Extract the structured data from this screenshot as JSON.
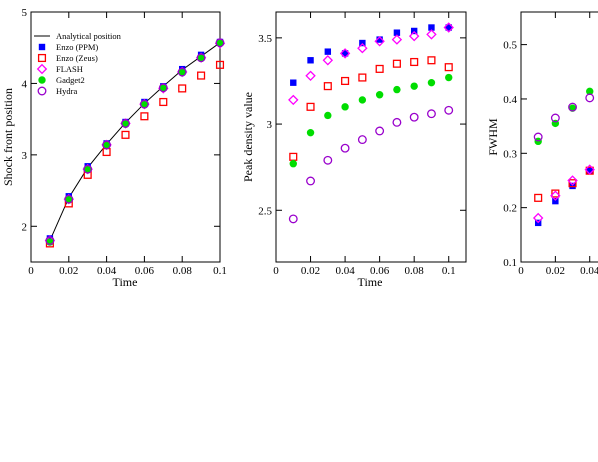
{
  "chart_data": [
    {
      "type": "scatter",
      "xlabel": "Time",
      "ylabel": "Shock front position",
      "xlim": [
        0,
        0.1
      ],
      "ylim": [
        1.5,
        5
      ],
      "xticks": [
        "0",
        "0.02",
        "0.04",
        "0.06",
        "0.08",
        "0.1"
      ],
      "yticks": [
        "2",
        "3",
        "4",
        "5"
      ],
      "legend_position": "top-left",
      "analytical": {
        "name": "Analytical position",
        "x": [
          0.01,
          0.02,
          0.03,
          0.04,
          0.05,
          0.06,
          0.07,
          0.08,
          0.09,
          0.1
        ],
        "y": [
          1.8,
          2.4,
          2.82,
          3.15,
          3.45,
          3.72,
          3.96,
          4.19,
          4.38,
          4.57
        ]
      },
      "series": [
        {
          "name": "Enzo (PPM)",
          "marker": "square-filled",
          "color": "#0000ff",
          "x": [
            0.01,
            0.02,
            0.03,
            0.04,
            0.05,
            0.06,
            0.07,
            0.08,
            0.09,
            0.1
          ],
          "y": [
            1.83,
            2.42,
            2.84,
            3.16,
            3.46,
            3.74,
            3.96,
            4.2,
            4.4,
            4.58
          ]
        },
        {
          "name": "Enzo (Zeus)",
          "marker": "square-open",
          "color": "#ff0000",
          "x": [
            0.01,
            0.02,
            0.03,
            0.04,
            0.05,
            0.06,
            0.07,
            0.08,
            0.09,
            0.1
          ],
          "y": [
            1.76,
            2.32,
            2.72,
            3.04,
            3.28,
            3.54,
            3.74,
            3.93,
            4.11,
            4.26
          ]
        },
        {
          "name": "FLASH",
          "marker": "diamond-open",
          "color": "#ff00ff",
          "x": [
            0.01,
            0.02,
            0.03,
            0.04,
            0.05,
            0.06,
            0.07,
            0.08,
            0.09,
            0.1
          ],
          "y": [
            1.8,
            2.38,
            2.8,
            3.14,
            3.44,
            3.71,
            3.93,
            4.16,
            4.36,
            4.56
          ]
        },
        {
          "name": "Gadget2",
          "marker": "circle-filled",
          "color": "#00dd00",
          "x": [
            0.01,
            0.02,
            0.03,
            0.04,
            0.05,
            0.06,
            0.07,
            0.08,
            0.09,
            0.1
          ],
          "y": [
            1.78,
            2.37,
            2.79,
            3.13,
            3.43,
            3.7,
            3.93,
            4.15,
            4.35,
            4.56
          ]
        },
        {
          "name": "Hydra",
          "marker": "circle-open",
          "color": "#9900cc",
          "x": [
            0.01,
            0.02,
            0.03,
            0.04,
            0.05,
            0.06,
            0.07,
            0.08,
            0.09,
            0.1
          ],
          "y": [
            1.8,
            2.38,
            2.8,
            3.14,
            3.44,
            3.71,
            3.94,
            4.16,
            4.36,
            4.57
          ]
        }
      ]
    },
    {
      "type": "scatter",
      "xlabel": "Time",
      "ylabel": "Peak density value",
      "xlim": [
        0,
        0.11
      ],
      "ylim": [
        2.2,
        3.65
      ],
      "xticks": [
        "0",
        "0.02",
        "0.04",
        "0.06",
        "0.08",
        "0.1"
      ],
      "yticks": [
        "2.5",
        "3",
        "3.5"
      ],
      "series": [
        {
          "name": "Enzo (PPM)",
          "marker": "square-filled",
          "color": "#0000ff",
          "x": [
            0.01,
            0.02,
            0.03,
            0.04,
            0.05,
            0.06,
            0.07,
            0.08,
            0.09,
            0.1
          ],
          "y": [
            3.24,
            3.37,
            3.42,
            3.41,
            3.47,
            3.49,
            3.53,
            3.54,
            3.56,
            3.56
          ]
        },
        {
          "name": "Enzo (Zeus)",
          "marker": "square-open",
          "color": "#ff0000",
          "x": [
            0.01,
            0.02,
            0.03,
            0.04,
            0.05,
            0.06,
            0.07,
            0.08,
            0.09,
            0.1
          ],
          "y": [
            2.81,
            3.1,
            3.22,
            3.25,
            3.27,
            3.32,
            3.35,
            3.36,
            3.37,
            3.33
          ]
        },
        {
          "name": "FLASH",
          "marker": "diamond-open",
          "color": "#ff00ff",
          "x": [
            0.01,
            0.02,
            0.03,
            0.04,
            0.05,
            0.06,
            0.07,
            0.08,
            0.09,
            0.1
          ],
          "y": [
            3.14,
            3.28,
            3.37,
            3.41,
            3.44,
            3.48,
            3.49,
            3.51,
            3.52,
            3.56
          ]
        },
        {
          "name": "Gadget2",
          "marker": "circle-filled",
          "color": "#00dd00",
          "x": [
            0.01,
            0.02,
            0.03,
            0.04,
            0.05,
            0.06,
            0.07,
            0.08,
            0.09,
            0.1
          ],
          "y": [
            2.77,
            2.95,
            3.05,
            3.1,
            3.14,
            3.17,
            3.2,
            3.22,
            3.24,
            3.27
          ]
        },
        {
          "name": "Hydra",
          "marker": "circle-open",
          "color": "#9900cc",
          "x": [
            0.01,
            0.02,
            0.03,
            0.04,
            0.05,
            0.06,
            0.07,
            0.08,
            0.09,
            0.1
          ],
          "y": [
            2.45,
            2.67,
            2.79,
            2.86,
            2.91,
            2.96,
            3.01,
            3.04,
            3.06,
            3.08
          ]
        }
      ]
    },
    {
      "type": "scatter",
      "xlabel": "",
      "ylabel": "FWHM",
      "xlim": [
        0,
        0.11
      ],
      "ylim": [
        0.1,
        0.56
      ],
      "xticks": [
        "0",
        "0.02",
        "0.04"
      ],
      "yticks": [
        "0.1",
        "0.2",
        "0.3",
        "0.4",
        "0.5"
      ],
      "series": [
        {
          "name": "Enzo (PPM)",
          "marker": "square-filled",
          "color": "#0000ff",
          "x": [
            0.01,
            0.02,
            0.03,
            0.04
          ],
          "y": [
            0.172,
            0.212,
            0.24,
            0.268
          ]
        },
        {
          "name": "Enzo (Zeus)",
          "marker": "square-open",
          "color": "#ff0000",
          "x": [
            0.01,
            0.02,
            0.03,
            0.04
          ],
          "y": [
            0.218,
            0.226,
            0.245,
            0.268
          ]
        },
        {
          "name": "FLASH",
          "marker": "diamond-open",
          "color": "#ff00ff",
          "x": [
            0.01,
            0.02,
            0.03,
            0.04
          ],
          "y": [
            0.181,
            0.222,
            0.25,
            0.27
          ]
        },
        {
          "name": "Gadget2",
          "marker": "circle-filled",
          "color": "#00dd00",
          "x": [
            0.01,
            0.02,
            0.03,
            0.04
          ],
          "y": [
            0.322,
            0.355,
            0.383,
            0.414
          ]
        },
        {
          "name": "Hydra",
          "marker": "circle-open",
          "color": "#9900cc",
          "x": [
            0.01,
            0.02,
            0.03,
            0.04
          ],
          "y": [
            0.33,
            0.365,
            0.385,
            0.402
          ]
        }
      ]
    }
  ]
}
